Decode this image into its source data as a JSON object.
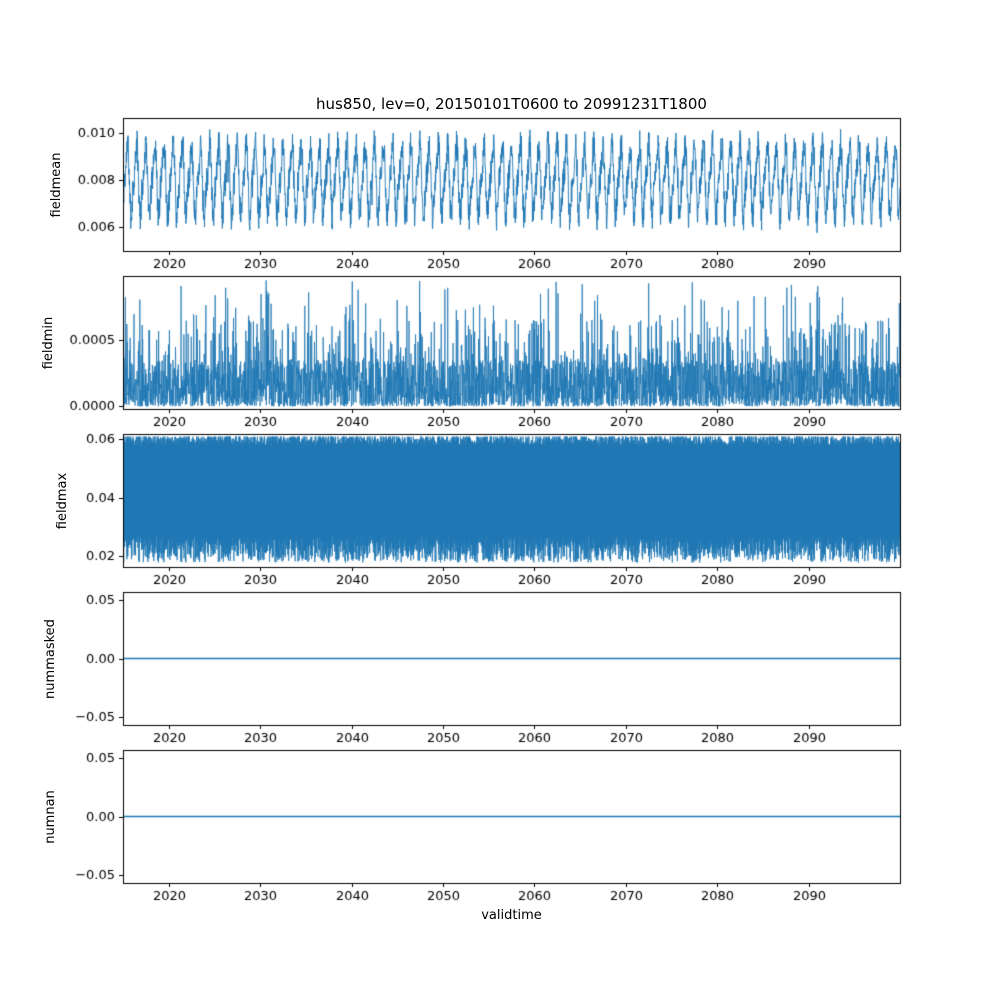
{
  "figure": {
    "title": "hus850, lev=0, 20150101T0600 to 20991231T1800",
    "xlabel": "validtime",
    "background": "#ffffff",
    "line_color": "#1f77b4",
    "axes_color": "#000000",
    "x_range": [
      2015,
      2100
    ],
    "x_tick_values": [
      2020,
      2030,
      2040,
      2050,
      2060,
      2070,
      2080,
      2090
    ],
    "x_tick_labels": [
      "2020",
      "2030",
      "2040",
      "2050",
      "2060",
      "2070",
      "2080",
      "2090"
    ]
  },
  "chart_data": [
    {
      "type": "line",
      "ylabel": "fieldmean",
      "ylim": [
        0.00495,
        0.01065
      ],
      "ytick_values": [
        0.006,
        0.008,
        0.01
      ],
      "ytick_labels": [
        "0.006",
        "0.008",
        "0.010"
      ],
      "series": [
        {
          "name": "fieldmean",
          "color": "#1f77b4",
          "line_width": 0.9,
          "pattern": "seasonal",
          "seed": 11,
          "n": 3100,
          "base": 0.008,
          "seasonal_amplitude": 0.00135,
          "harmonic_ratio": 0.3,
          "noise": 0.0013,
          "min": 0.0052,
          "max": 0.0105
        }
      ],
      "summary": "Dense sub-daily time series 2015-2099 oscillating seasonally between ~0.0055 and ~0.0105 around a mean of ~0.008, with rare dips to ~0.0052 (e.g. near 2041 and 2096)."
    },
    {
      "type": "line",
      "ylabel": "fieldmin",
      "ylim": [
        -2e-05,
        0.00098
      ],
      "ytick_values": [
        0.0,
        0.0005
      ],
      "ytick_labels": [
        "0.0000",
        "0.0005"
      ],
      "series": [
        {
          "name": "fieldmin",
          "color": "#1f77b4",
          "line_width": 0.8,
          "pattern": "spikes",
          "seed": 22,
          "n": 3600,
          "baseline_max": 0.00035,
          "mid_prob": 0.1,
          "mid_min": 0.0003,
          "mid_max": 0.00065,
          "tall_prob": 0.025,
          "tall_min": 0.0006,
          "tall_max": 0.00095
        }
      ],
      "summary": "Field minimum: dense mass of values between 0 and ~0.0003 with frequent spikes to 0.0004-0.00065 and sparse tall spikes up to ~0.0009 across the whole period."
    },
    {
      "type": "line",
      "ylabel": "fieldmax",
      "ylim": [
        0.0163,
        0.0617
      ],
      "ytick_values": [
        0.02,
        0.04,
        0.06
      ],
      "ytick_labels": [
        "0.02",
        "0.04",
        "0.06"
      ],
      "series": [
        {
          "name": "fieldmax",
          "color": "#1f77b4",
          "line_width": 0.8,
          "pattern": "band",
          "seed": 33,
          "n": 3400,
          "top_mean": 0.0597,
          "top_jitter": 0.004,
          "top_cap": 0.0608,
          "bottom_min": 0.0178,
          "bottom_jitter": 0.009
        }
      ],
      "summary": "Field maximum: solid dense band filling roughly 0.018 to 0.06 for the entire 2015-2099 period, with a ragged lower edge near 0.018-0.026 and a nearly flat top at ~0.06."
    },
    {
      "type": "line",
      "ylabel": "nummasked",
      "ylim": [
        -0.057,
        0.057
      ],
      "ytick_values": [
        -0.05,
        0.0,
        0.05
      ],
      "ytick_labels": [
        "−0.05",
        "0.00",
        "0.05"
      ],
      "series": [
        {
          "name": "nummasked",
          "color": "#1f77b4",
          "line_width": 1.6,
          "pattern": "constant",
          "value": 0.0
        }
      ],
      "summary": "Number of masked points: constant zero for the whole period."
    },
    {
      "type": "line",
      "ylabel": "numnan",
      "ylim": [
        -0.057,
        0.057
      ],
      "ytick_values": [
        -0.05,
        0.0,
        0.05
      ],
      "ytick_labels": [
        "−0.05",
        "0.00",
        "0.05"
      ],
      "series": [
        {
          "name": "numnan",
          "color": "#1f77b4",
          "line_width": 1.6,
          "pattern": "constant",
          "value": 0.0
        }
      ],
      "summary": "Number of NaN points: constant zero for the whole period."
    }
  ]
}
